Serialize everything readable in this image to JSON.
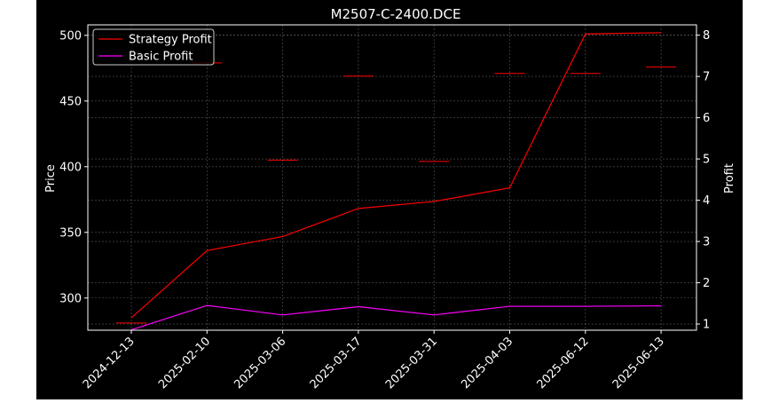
{
  "chart_data": {
    "type": "line",
    "title": "M2507-C-2400.DCE",
    "ylabel_left": "Price",
    "ylabel_right": "Profit",
    "categories": [
      "2024-12-13",
      "2025-02-10",
      "2025-03-06",
      "2025-03-17",
      "2025-03-31",
      "2025-04-03",
      "2025-06-12",
      "2025-06-13"
    ],
    "price_ylim": [
      275.5,
      508
    ],
    "price_yticks": [
      300,
      350,
      400,
      450,
      500
    ],
    "profit_ylim": [
      0.85,
      8.25
    ],
    "profit_yticks": [
      1,
      2,
      3,
      4,
      5,
      6,
      7,
      8
    ],
    "price_marks": [
      281,
      479,
      405,
      469,
      404,
      471,
      471,
      476
    ],
    "series": [
      {
        "name": "Strategy Profit",
        "axis": "right",
        "color": "#ff0000",
        "values": [
          1.15,
          2.78,
          3.12,
          3.8,
          3.97,
          4.3,
          8.03,
          8.06
        ]
      },
      {
        "name": "Basic Profit",
        "axis": "right",
        "color": "#ff00ff",
        "values": [
          0.86,
          1.45,
          1.22,
          1.42,
          1.22,
          1.43,
          1.43,
          1.44
        ]
      }
    ],
    "candle_color": "#ff0000",
    "grid": true,
    "legend_position": "top-left",
    "background": "#000000",
    "foreground": "#ffffff"
  }
}
